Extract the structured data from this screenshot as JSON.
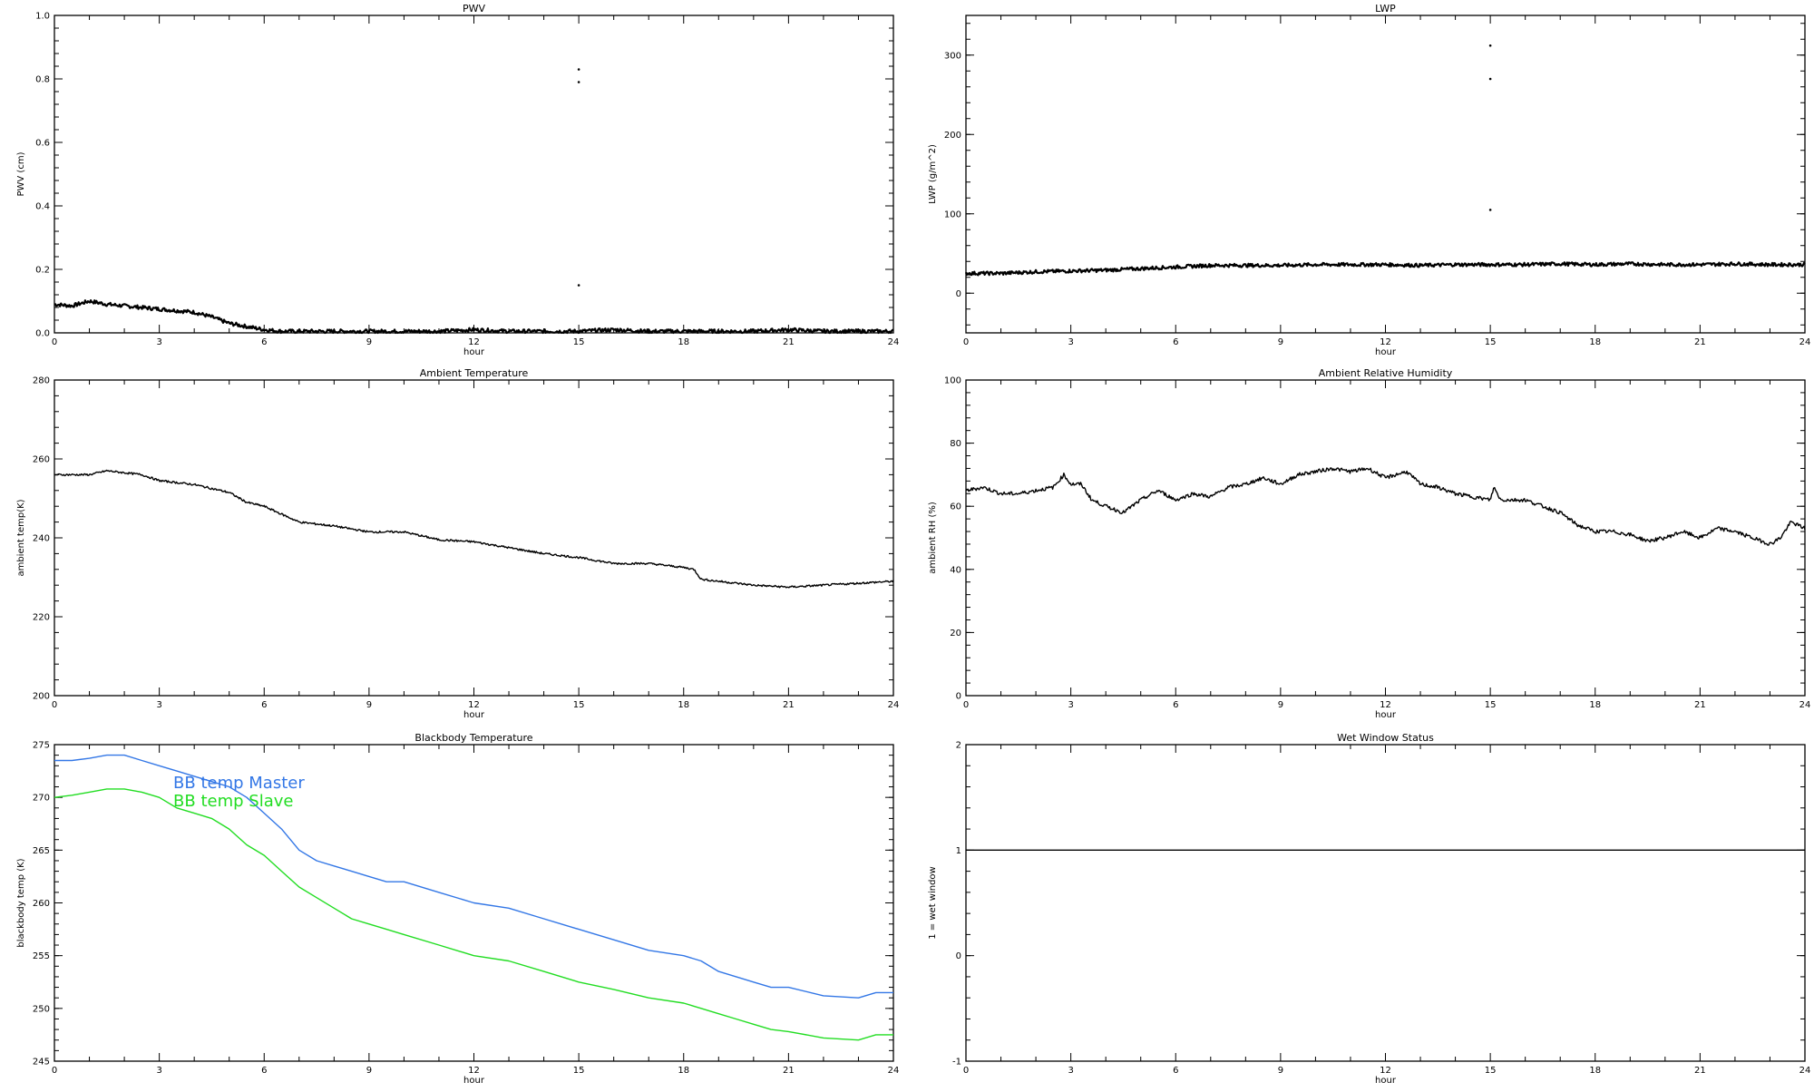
{
  "chart_data": [
    {
      "type": "line",
      "title": "PWV",
      "xlabel": "hour",
      "ylabel": "PWV (cm)",
      "xlim": [
        0,
        24
      ],
      "ylim": [
        0,
        1.0
      ],
      "xticks": [
        "0",
        "3",
        "6",
        "9",
        "12",
        "15",
        "18",
        "21",
        "24"
      ],
      "yticks": [
        "0.0",
        "0.2",
        "0.4",
        "0.6",
        "0.8",
        "1.0"
      ],
      "series": [
        {
          "color": "#000000",
          "x": [
            0,
            0.5,
            1,
            1.5,
            2,
            2.5,
            3,
            3.5,
            4,
            4.5,
            5,
            5.5,
            6,
            6.5,
            7,
            8,
            9,
            10,
            11,
            12,
            13,
            14,
            15,
            16,
            17,
            18,
            19,
            20,
            21,
            22,
            23,
            24
          ],
          "y": [
            0.09,
            0.085,
            0.1,
            0.09,
            0.085,
            0.08,
            0.075,
            0.07,
            0.065,
            0.05,
            0.03,
            0.02,
            0.01,
            0.005,
            0.005,
            0.005,
            0.005,
            0.005,
            0.005,
            0.01,
            0.005,
            0.005,
            0.005,
            0.01,
            0.005,
            0.005,
            0.005,
            0.005,
            0.01,
            0.005,
            0.005,
            0.005
          ]
        }
      ],
      "outliers": [
        [
          15,
          0.83
        ],
        [
          15,
          0.79
        ],
        [
          15,
          0.15
        ]
      ]
    },
    {
      "type": "line",
      "title": "LWP",
      "xlabel": "hour",
      "ylabel": "LWP (g/m^2)",
      "xlim": [
        0,
        24
      ],
      "ylim": [
        -50,
        350
      ],
      "xticks": [
        "0",
        "3",
        "6",
        "9",
        "12",
        "15",
        "18",
        "21",
        "24"
      ],
      "yticks": [
        "0",
        "100",
        "200",
        "300"
      ],
      "series": [
        {
          "color": "#000000",
          "x": [
            0,
            1,
            2,
            3,
            4,
            5,
            6,
            7,
            8,
            9,
            10,
            11,
            12,
            13,
            14,
            15,
            16,
            17,
            18,
            19,
            20,
            21,
            22,
            23,
            24
          ],
          "y": [
            25,
            25,
            27,
            28,
            29,
            31,
            33,
            35,
            35,
            35,
            36,
            36,
            36,
            35,
            36,
            36,
            36,
            37,
            36,
            37,
            36,
            36,
            37,
            36,
            36
          ]
        }
      ],
      "outliers": [
        [
          15,
          312
        ],
        [
          15,
          270
        ],
        [
          15,
          105
        ]
      ]
    },
    {
      "type": "line",
      "title": "Ambient Temperature",
      "xlabel": "hour",
      "ylabel": "ambient temp(K)",
      "xlim": [
        0,
        24
      ],
      "ylim": [
        200,
        280
      ],
      "xticks": [
        "0",
        "3",
        "6",
        "9",
        "12",
        "15",
        "18",
        "21",
        "24"
      ],
      "yticks": [
        "200",
        "220",
        "240",
        "260",
        "280"
      ],
      "series": [
        {
          "color": "#000000",
          "x": [
            0,
            1,
            1.5,
            2,
            2.5,
            3,
            4,
            5,
            5.5,
            6,
            7,
            8,
            9,
            10,
            11,
            12,
            13,
            14,
            15,
            16,
            17,
            18,
            18.3,
            18.5,
            19,
            20,
            21,
            22,
            23,
            24
          ],
          "y": [
            256,
            256,
            257,
            256.5,
            256,
            254.5,
            253.5,
            251.5,
            249,
            248,
            244,
            243,
            241.5,
            241.5,
            239.5,
            239,
            237.5,
            236,
            235,
            233.5,
            233.5,
            232.5,
            232,
            229.5,
            229,
            228,
            227.5,
            228,
            228.5,
            229
          ]
        }
      ]
    },
    {
      "type": "line",
      "title": "Ambient Relative Humidity",
      "xlabel": "hour",
      "ylabel": "ambient RH (%)",
      "xlim": [
        0,
        24
      ],
      "ylim": [
        0,
        100
      ],
      "xticks": [
        "0",
        "3",
        "6",
        "9",
        "12",
        "15",
        "18",
        "21",
        "24"
      ],
      "yticks": [
        "0",
        "20",
        "40",
        "60",
        "80",
        "100"
      ],
      "series": [
        {
          "color": "#000000",
          "x": [
            0,
            0.5,
            1,
            1.5,
            2,
            2.5,
            2.8,
            3,
            3.3,
            3.6,
            4,
            4.5,
            5,
            5.5,
            6,
            6.5,
            7,
            7.5,
            8,
            8.5,
            9,
            9.5,
            10,
            10.5,
            11,
            11.5,
            12,
            12.3,
            12.6,
            13,
            13.5,
            14,
            14.5,
            15,
            15.1,
            15.3,
            16,
            16.5,
            17,
            17.5,
            18,
            18.5,
            19,
            19.5,
            20,
            20.5,
            21,
            21.5,
            22,
            22.5,
            23,
            23.3,
            23.6,
            24
          ],
          "y": [
            65,
            66,
            64,
            64,
            65,
            66,
            70,
            67,
            67,
            62,
            60,
            58,
            62,
            65,
            62,
            64,
            63,
            66,
            67,
            69,
            67,
            70,
            71,
            72,
            71,
            72,
            69,
            70,
            71,
            67,
            66,
            64,
            63,
            62,
            66,
            62,
            62,
            60,
            58,
            54,
            52,
            52,
            51,
            49,
            50,
            52,
            50,
            53,
            52,
            50,
            48,
            50,
            55,
            53
          ]
        }
      ]
    },
    {
      "type": "line",
      "title": "Blackbody Temperature",
      "xlabel": "hour",
      "ylabel": "blackbody temp (K)",
      "xlim": [
        0,
        24
      ],
      "ylim": [
        245,
        275
      ],
      "xticks": [
        "0",
        "3",
        "6",
        "9",
        "12",
        "15",
        "18",
        "21",
        "24"
      ],
      "yticks": [
        "245",
        "250",
        "255",
        "260",
        "265",
        "270",
        "275"
      ],
      "legend": [
        "BB temp Master",
        "BB temp Slave"
      ],
      "series": [
        {
          "name": "BB temp Master",
          "color": "#3377e6",
          "x": [
            0,
            0.5,
            1,
            1.5,
            2,
            2.5,
            3,
            3.5,
            4,
            4.5,
            5,
            5.5,
            6,
            6.5,
            7,
            7.5,
            8,
            8.5,
            9,
            9.5,
            10,
            11,
            12,
            13,
            14,
            15,
            16,
            17,
            18,
            18.5,
            19,
            19.5,
            20,
            20.5,
            21,
            22,
            23,
            23.5,
            24
          ],
          "y": [
            273.5,
            273.5,
            273.7,
            274,
            274,
            273.5,
            273,
            272.5,
            272,
            271.5,
            271,
            270,
            268.5,
            267,
            265,
            264,
            263.5,
            263,
            262.5,
            262,
            262,
            261,
            260,
            259.5,
            258.5,
            257.5,
            256.5,
            255.5,
            255,
            254.5,
            253.5,
            253,
            252.5,
            252,
            252,
            251.2,
            251,
            251.5,
            251.5
          ]
        },
        {
          "name": "BB temp Slave",
          "color": "#22dd22",
          "x": [
            0,
            0.5,
            1,
            1.5,
            2,
            2.5,
            3,
            3.5,
            4,
            4.5,
            5,
            5.5,
            6,
            6.5,
            7,
            7.5,
            8,
            8.5,
            9,
            9.5,
            10,
            11,
            12,
            13,
            14,
            15,
            16,
            17,
            18,
            18.5,
            19,
            19.5,
            20,
            20.5,
            21,
            22,
            23,
            23.5,
            24
          ],
          "y": [
            270,
            270.2,
            270.5,
            270.8,
            270.8,
            270.5,
            270,
            269,
            268.5,
            268,
            267,
            265.5,
            264.5,
            263,
            261.5,
            260.5,
            259.5,
            258.5,
            258,
            257.5,
            257,
            256,
            255,
            254.5,
            253.5,
            252.5,
            251.8,
            251,
            250.5,
            250,
            249.5,
            249,
            248.5,
            248,
            247.8,
            247.2,
            247,
            247.5,
            247.5
          ]
        }
      ]
    },
    {
      "type": "line",
      "title": "Wet Window Status",
      "xlabel": "hour",
      "ylabel": "1 = wet window",
      "xlim": [
        0,
        24
      ],
      "ylim": [
        -1,
        2
      ],
      "xticks": [
        "0",
        "3",
        "6",
        "9",
        "12",
        "15",
        "18",
        "21",
        "24"
      ],
      "yticks": [
        "-1",
        "0",
        "1",
        "2"
      ],
      "series": [
        {
          "color": "#000000",
          "x": [
            0,
            24
          ],
          "y": [
            1,
            1
          ]
        }
      ]
    }
  ]
}
